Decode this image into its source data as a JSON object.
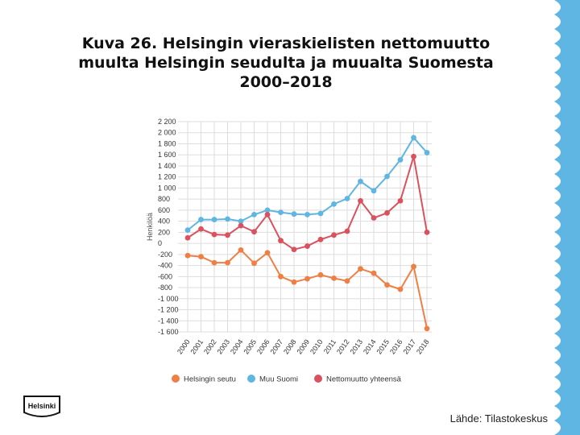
{
  "slide": {
    "title_lines": [
      "Kuva 26. Helsingin vieraskielisten nettomuutto",
      "muulta Helsingin seudulta ja muualta Suomesta",
      "2000–2018"
    ],
    "source": "Lähde: Tilastokeskus",
    "logo_text": "Helsinki"
  },
  "chart_data": {
    "type": "line",
    "ylabel": "Henkilöä",
    "ylim": [
      -1600,
      2200
    ],
    "yticks": [
      2200,
      2000,
      1800,
      1600,
      1400,
      1200,
      1000,
      800,
      600,
      400,
      200,
      0,
      -200,
      -400,
      -600,
      -800,
      -1000,
      -1200,
      -1400,
      -1600
    ],
    "ytick_labels": [
      "2 200",
      "2 000",
      "1 800",
      "1 600",
      "1 400",
      "1 200",
      "1 000",
      "800",
      "600",
      "400",
      "200",
      "0",
      "-200",
      "-400",
      "-600",
      "-800",
      "-1 000",
      "-1 200",
      "-1 400",
      "-1 600"
    ],
    "categories": [
      "2000",
      "2001",
      "2002",
      "2003",
      "2004",
      "2005",
      "2006",
      "2007",
      "2008",
      "2009",
      "2010",
      "2011",
      "2012",
      "2013",
      "2014",
      "2015",
      "2016",
      "2017",
      "2018"
    ],
    "grid": true,
    "legend_position": "bottom",
    "series": [
      {
        "name": "Helsingin seutu",
        "color": "#F07F45",
        "values": [
          -220,
          -240,
          -350,
          -350,
          -120,
          -360,
          -170,
          -600,
          -700,
          -640,
          -570,
          -630,
          -680,
          -460,
          -540,
          -750,
          -830,
          -420,
          -1540
        ]
      },
      {
        "name": "Muu Suomi",
        "color": "#5FB6E2",
        "values": [
          240,
          430,
          430,
          440,
          400,
          520,
          600,
          560,
          530,
          520,
          540,
          710,
          810,
          1120,
          950,
          1210,
          1510,
          1910,
          1640
        ]
      },
      {
        "name": "Nettomuutto yhteensä",
        "color": "#D9525E",
        "values": [
          100,
          260,
          160,
          150,
          320,
          210,
          520,
          50,
          -110,
          -50,
          70,
          150,
          220,
          770,
          460,
          550,
          770,
          1570,
          200
        ]
      }
    ]
  }
}
